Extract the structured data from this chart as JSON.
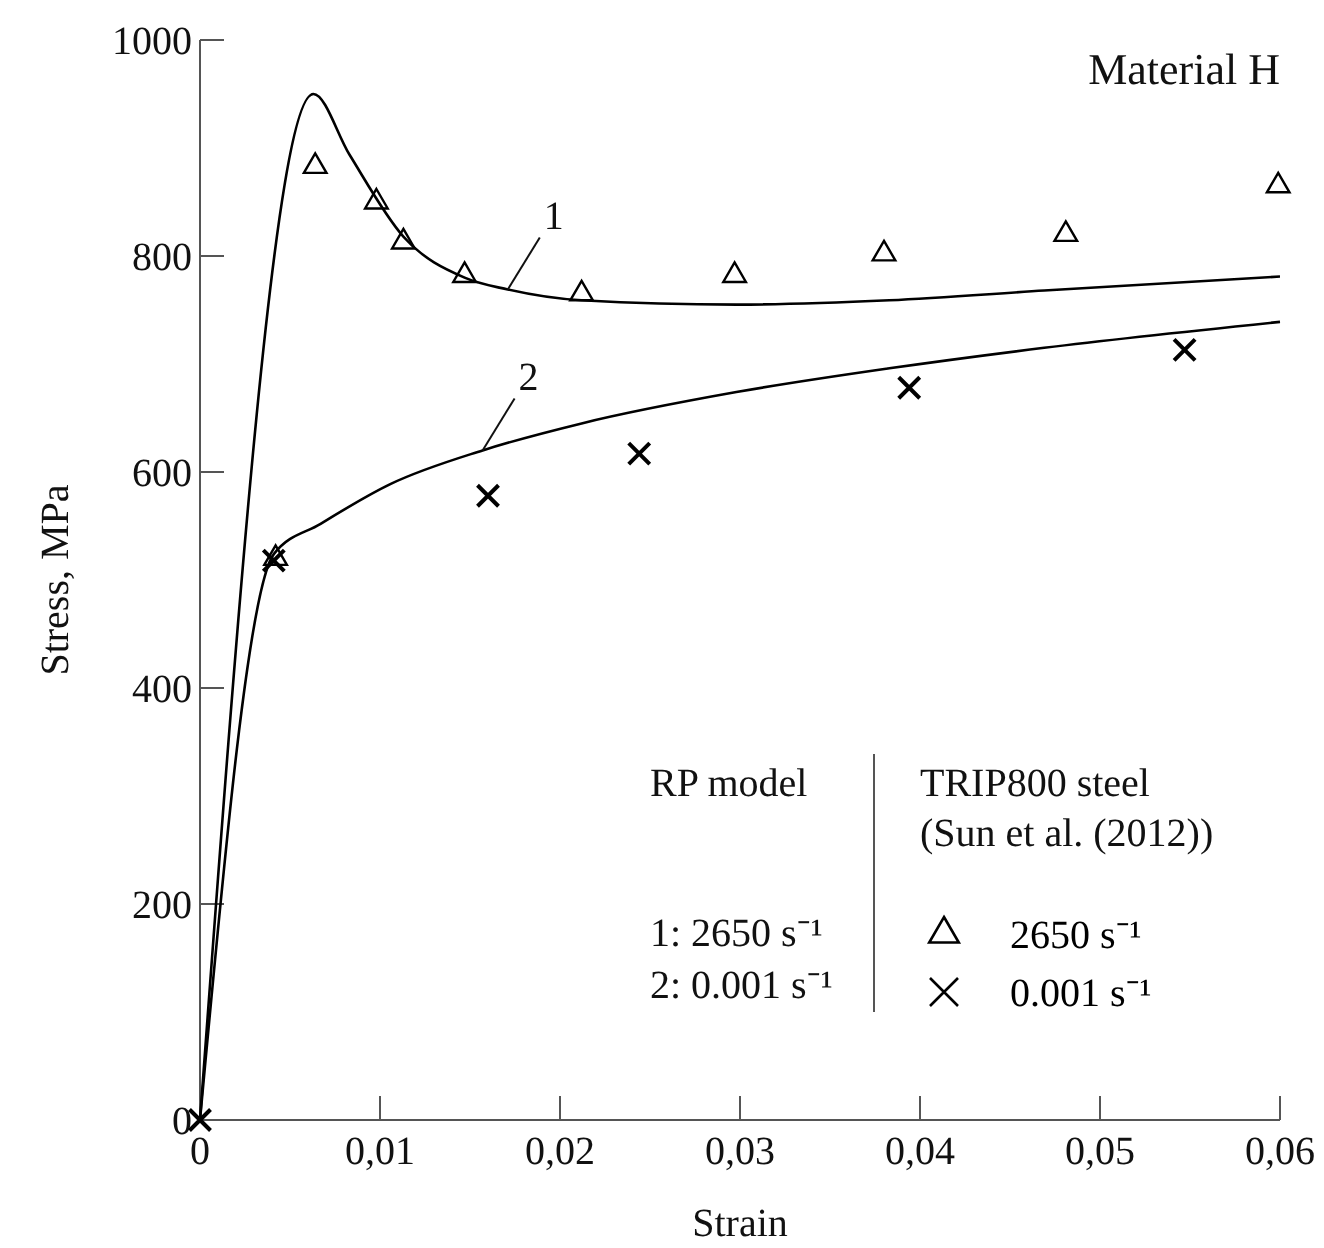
{
  "chart_data": {
    "type": "line",
    "title": "Material H",
    "xlabel": "Strain",
    "ylabel": "Stress, MPa",
    "xlim": [
      0,
      0.06
    ],
    "ylim": [
      0,
      1000
    ],
    "xticks": [
      0,
      {
        "value": 0.01,
        "label": "0,01"
      },
      {
        "value": 0.02,
        "label": "0,02"
      },
      {
        "value": 0.03,
        "label": "0,03"
      },
      {
        "value": 0.04,
        "label": "0,04"
      },
      {
        "value": 0.05,
        "label": "0,05"
      },
      {
        "value": 0.06,
        "label": "0,06"
      }
    ],
    "yticks": [
      0,
      200,
      400,
      600,
      800,
      1000
    ],
    "grid": false,
    "legend": "bottom right",
    "annotations": [
      "RP model",
      "TRIP800 steel\n(Sun et al. (2012))",
      "1: 2650 s⁻¹",
      "2: 0.001 s⁻¹",
      {
        "text": "1",
        "x": 0.0171,
        "y": 769
      },
      {
        "text": "2",
        "x": 0.0157,
        "y": 620
      }
    ],
    "series": [
      {
        "type": "line",
        "color": "#000000",
        "marker": "none",
        "line_style": "solid",
        "x": [
          0,
          0.0063,
          0.0083,
          0.0113,
          0.0147,
          0.0171,
          0.0212,
          0.0298,
          0.0383,
          0.0469,
          0.06
        ],
        "values": [
          0,
          950,
          894,
          818,
          780,
          769,
          759,
          755,
          759,
          768,
          781
        ]
      },
      {
        "type": "line",
        "color": "#000000",
        "marker": "none",
        "line_style": "solid",
        "x": [
          0,
          0.0041,
          0.0067,
          0.0106,
          0.0157,
          0.0212,
          0.0298,
          0.0383,
          0.0469,
          0.06
        ],
        "values": [
          0,
          524,
          552,
          589,
          620,
          645,
          674,
          696,
          715,
          739
        ]
      },
      {
        "name": "2650 s⁻¹",
        "type": "scatter",
        "color": "#000000",
        "marker": "triangle",
        "x": [
          0.0042,
          0.0064,
          0.0098,
          0.0113,
          0.0147,
          0.0212,
          0.0297,
          0.038,
          0.0481,
          0.0599
        ],
        "values": [
          520,
          883,
          850,
          813,
          782,
          765,
          782,
          802,
          820,
          865
        ]
      },
      {
        "name": "0.001 s⁻¹",
        "type": "scatter",
        "color": "#000000",
        "marker": "cross",
        "x": [
          0,
          0.0041,
          0.016,
          0.0244,
          0.0394,
          0.0547
        ],
        "values": [
          0,
          518,
          578,
          617,
          678,
          713
        ]
      }
    ]
  }
}
